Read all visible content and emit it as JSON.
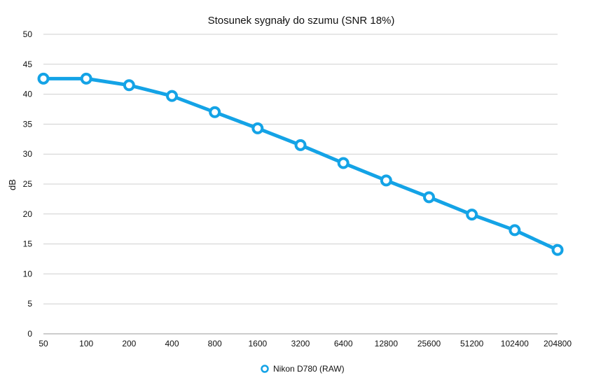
{
  "chart_data": {
    "type": "line",
    "title": "Stosunek sygnały do szumu (SNR 18%)",
    "xlabel": "",
    "ylabel": "dB",
    "categories": [
      "50",
      "100",
      "200",
      "400",
      "800",
      "1600",
      "3200",
      "6400",
      "12800",
      "25600",
      "51200",
      "102400",
      "204800"
    ],
    "series": [
      {
        "name": "Nikon D780 (RAW)",
        "color": "#14A3E6",
        "values": [
          42.6,
          42.6,
          41.5,
          39.7,
          37.0,
          34.3,
          31.5,
          28.5,
          25.6,
          22.8,
          19.9,
          17.3,
          14.0
        ]
      }
    ],
    "ylim": [
      0,
      50
    ],
    "y_ticks": [
      "0",
      "5",
      "10",
      "15",
      "20",
      "25",
      "30",
      "35",
      "40",
      "45",
      "50"
    ],
    "grid": true,
    "legend_position": "bottom-center",
    "marker": "hollow-circle"
  }
}
